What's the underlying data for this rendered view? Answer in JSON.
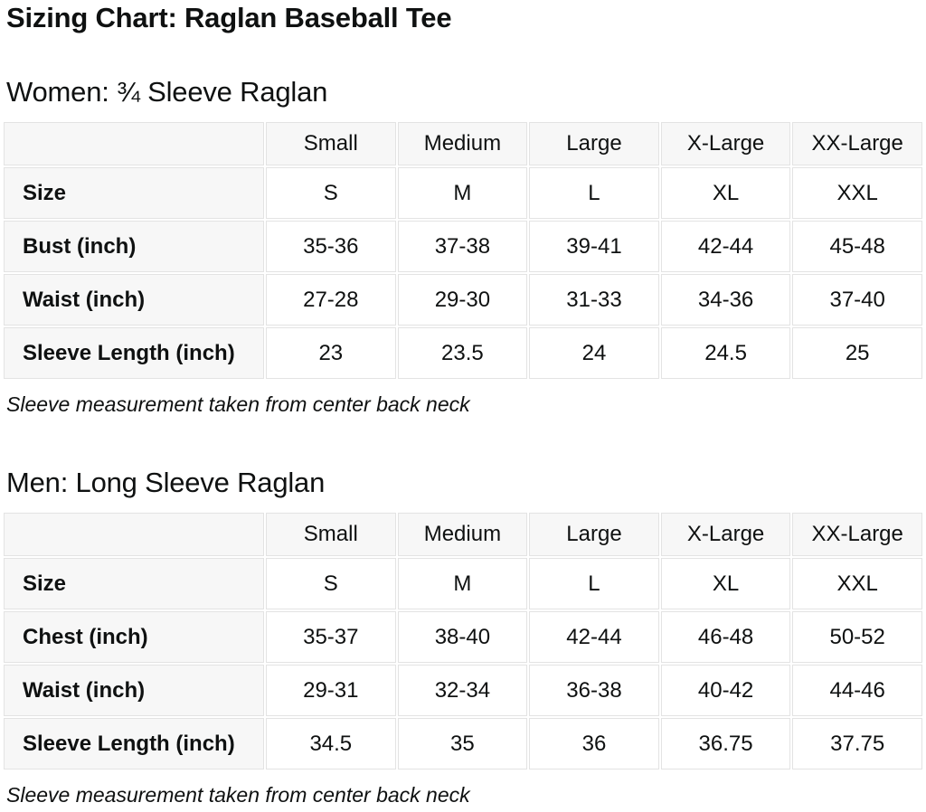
{
  "page": {
    "title": "Sizing Chart: Raglan Baseball Tee"
  },
  "colors": {
    "text": "#0f1111",
    "cell_border": "#e3e3e3",
    "label_cell_bg": "#f7f7f7",
    "value_cell_bg": "#ffffff"
  },
  "sections": [
    {
      "heading": "Women: ¾ Sleeve Raglan",
      "note": "Sleeve measurement taken from center back neck",
      "table": {
        "column_headers": [
          "",
          "Small",
          "Medium",
          "Large",
          "X-Large",
          "XX-Large"
        ],
        "rows": [
          {
            "label": "Size",
            "values": [
              "S",
              "M",
              "L",
              "XL",
              "XXL"
            ]
          },
          {
            "label": "Bust (inch)",
            "values": [
              "35-36",
              "37-38",
              "39-41",
              "42-44",
              "45-48"
            ]
          },
          {
            "label": "Waist (inch)",
            "values": [
              "27-28",
              "29-30",
              "31-33",
              "34-36",
              "37-40"
            ]
          },
          {
            "label": "Sleeve Length (inch)",
            "values": [
              "23",
              "23.5",
              "24",
              "24.5",
              "25"
            ]
          }
        ]
      }
    },
    {
      "heading": "Men: Long Sleeve Raglan",
      "note": "Sleeve measurement taken from center back neck",
      "table": {
        "column_headers": [
          "",
          "Small",
          "Medium",
          "Large",
          "X-Large",
          "XX-Large"
        ],
        "rows": [
          {
            "label": "Size",
            "values": [
              "S",
              "M",
              "L",
              "XL",
              "XXL"
            ]
          },
          {
            "label": "Chest (inch)",
            "values": [
              "35-37",
              "38-40",
              "42-44",
              "46-48",
              "50-52"
            ]
          },
          {
            "label": "Waist (inch)",
            "values": [
              "29-31",
              "32-34",
              "36-38",
              "40-42",
              "44-46"
            ]
          },
          {
            "label": "Sleeve Length (inch)",
            "values": [
              "34.5",
              "35",
              "36",
              "36.75",
              "37.75"
            ]
          }
        ]
      }
    }
  ]
}
